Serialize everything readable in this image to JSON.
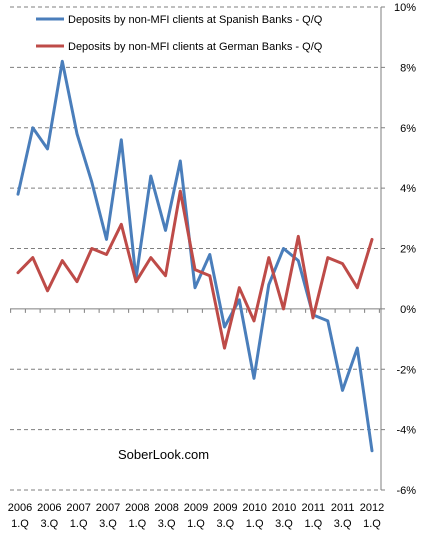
{
  "chart_data": {
    "type": "line",
    "title": "",
    "xlabel": "",
    "ylabel": "",
    "ylim": [
      -6,
      10
    ],
    "y_ticks": [
      "10%",
      "8%",
      "6%",
      "4%",
      "2%",
      "0%",
      "-2%",
      "-4%",
      "-6%"
    ],
    "y_tick_values": [
      10,
      8,
      6,
      4,
      2,
      0,
      -2,
      -4,
      -6
    ],
    "x_tick_labels": [
      {
        "year": "2006",
        "quarter": "1.Q"
      },
      {
        "year": "2006",
        "quarter": "3.Q"
      },
      {
        "year": "2007",
        "quarter": "1.Q"
      },
      {
        "year": "2007",
        "quarter": "3.Q"
      },
      {
        "year": "2008",
        "quarter": "1.Q"
      },
      {
        "year": "2008",
        "quarter": "3.Q"
      },
      {
        "year": "2009",
        "quarter": "1.Q"
      },
      {
        "year": "2009",
        "quarter": "3.Q"
      },
      {
        "year": "2010",
        "quarter": "1.Q"
      },
      {
        "year": "2010",
        "quarter": "3.Q"
      },
      {
        "year": "2011",
        "quarter": "1.Q"
      },
      {
        "year": "2011",
        "quarter": "3.Q"
      },
      {
        "year": "2012",
        "quarter": "1.Q"
      }
    ],
    "grid": "horizontal dashed",
    "legend_position": "top",
    "annotation": "SoberLook.com",
    "series": [
      {
        "name": "Deposits by non-MFI clients at Spanish Banks - Q/Q",
        "color": "#4a7ebb",
        "values": [
          3.8,
          6.0,
          5.3,
          8.2,
          5.8,
          4.2,
          2.3,
          5.6,
          1.0,
          4.4,
          2.6,
          4.9,
          0.7,
          1.8,
          -0.6,
          0.3,
          -2.3,
          0.8,
          2.0,
          1.6,
          -0.2,
          -0.4,
          -2.7,
          -1.3,
          -4.7
        ]
      },
      {
        "name": "Deposits by non-MFI clients at German Banks - Q/Q",
        "color": "#be4b48",
        "values": [
          1.2,
          1.7,
          0.6,
          1.6,
          0.9,
          2.0,
          1.8,
          2.8,
          0.9,
          1.7,
          1.1,
          3.9,
          1.3,
          1.1,
          -1.3,
          0.7,
          -0.4,
          1.7,
          0.0,
          2.4,
          -0.3,
          1.7,
          1.5,
          0.7,
          2.3
        ]
      }
    ]
  }
}
